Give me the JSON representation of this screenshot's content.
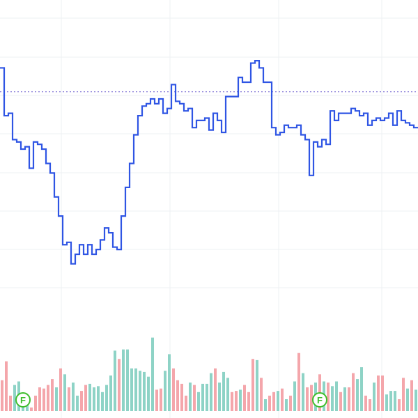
{
  "colors": {
    "price_line": "#2f55e4",
    "volume_up": "#8ed3c6",
    "volume_down": "#f4a6ab",
    "reference_line": "#6a5acd",
    "marker": "#3dbd2b",
    "grid": "#eef0f3"
  },
  "chart_data": {
    "type": "line",
    "description_note": "",
    "grid": true,
    "y_range": [
      0,
      100
    ],
    "volume_range": [
      0,
      100
    ],
    "reference_value": 82,
    "price_series": [
      92,
      72,
      73,
      62,
      61,
      58,
      59,
      50,
      61,
      60,
      58,
      52,
      48,
      38,
      30,
      18,
      19,
      10,
      14,
      18,
      14,
      18,
      14,
      16,
      20,
      25,
      23,
      17,
      16,
      30,
      42,
      52,
      64,
      72,
      76,
      77,
      79,
      77,
      79,
      73,
      75,
      85,
      78,
      77,
      74,
      75,
      67,
      70,
      70,
      71,
      66,
      73,
      70,
      65,
      80,
      80,
      80,
      88,
      86,
      86,
      94,
      95,
      92,
      86,
      86,
      67,
      64,
      65,
      68,
      67,
      67,
      68,
      64,
      62,
      47,
      61,
      59,
      62,
      60,
      74,
      70,
      73,
      73,
      73,
      75,
      74,
      72,
      73,
      68,
      70,
      71,
      70,
      71,
      73,
      68,
      74,
      70,
      69,
      68,
      67
    ],
    "volume_series": [
      {
        "v": 26,
        "up": false
      },
      {
        "v": 42,
        "up": false
      },
      {
        "v": 13,
        "up": false
      },
      {
        "v": 22,
        "up": true
      },
      {
        "v": 25,
        "up": true
      },
      {
        "v": 8,
        "up": true
      },
      {
        "v": 12,
        "up": true
      },
      {
        "v": 3,
        "up": false
      },
      {
        "v": 13,
        "up": false
      },
      {
        "v": 20,
        "up": false
      },
      {
        "v": 19,
        "up": false
      },
      {
        "v": 22,
        "up": false
      },
      {
        "v": 27,
        "up": false
      },
      {
        "v": 20,
        "up": true
      },
      {
        "v": 36,
        "up": false
      },
      {
        "v": 31,
        "up": true
      },
      {
        "v": 20,
        "up": false
      },
      {
        "v": 24,
        "up": true
      },
      {
        "v": 13,
        "up": true
      },
      {
        "v": 17,
        "up": false
      },
      {
        "v": 22,
        "up": false
      },
      {
        "v": 23,
        "up": true
      },
      {
        "v": 20,
        "up": true
      },
      {
        "v": 21,
        "up": true
      },
      {
        "v": 16,
        "up": true
      },
      {
        "v": 22,
        "up": true
      },
      {
        "v": 30,
        "up": true
      },
      {
        "v": 51,
        "up": true
      },
      {
        "v": 44,
        "up": false
      },
      {
        "v": 52,
        "up": true
      },
      {
        "v": 52,
        "up": true
      },
      {
        "v": 36,
        "up": true
      },
      {
        "v": 36,
        "up": true
      },
      {
        "v": 34,
        "up": true
      },
      {
        "v": 33,
        "up": true
      },
      {
        "v": 29,
        "up": true
      },
      {
        "v": 62,
        "up": true
      },
      {
        "v": 18,
        "up": false
      },
      {
        "v": 19,
        "up": false
      },
      {
        "v": 34,
        "up": true
      },
      {
        "v": 48,
        "up": true
      },
      {
        "v": 36,
        "up": false
      },
      {
        "v": 26,
        "up": false
      },
      {
        "v": 23,
        "up": false
      },
      {
        "v": 13,
        "up": false
      },
      {
        "v": 24,
        "up": true
      },
      {
        "v": 22,
        "up": false
      },
      {
        "v": 16,
        "up": true
      },
      {
        "v": 23,
        "up": true
      },
      {
        "v": 23,
        "up": true
      },
      {
        "v": 32,
        "up": true
      },
      {
        "v": 36,
        "up": false
      },
      {
        "v": 24,
        "up": true
      },
      {
        "v": 33,
        "up": true
      },
      {
        "v": 28,
        "up": true
      },
      {
        "v": 16,
        "up": false
      },
      {
        "v": 17,
        "up": false
      },
      {
        "v": 18,
        "up": true
      },
      {
        "v": 22,
        "up": false
      },
      {
        "v": 16,
        "up": false
      },
      {
        "v": 44,
        "up": false
      },
      {
        "v": 43,
        "up": true
      },
      {
        "v": 28,
        "up": false
      },
      {
        "v": 10,
        "up": true
      },
      {
        "v": 13,
        "up": false
      },
      {
        "v": 16,
        "up": false
      },
      {
        "v": 17,
        "up": true
      },
      {
        "v": 19,
        "up": false
      },
      {
        "v": 10,
        "up": true
      },
      {
        "v": 13,
        "up": false
      },
      {
        "v": 25,
        "up": true
      },
      {
        "v": 49,
        "up": false
      },
      {
        "v": 32,
        "up": true
      },
      {
        "v": 20,
        "up": false
      },
      {
        "v": 22,
        "up": false
      },
      {
        "v": 24,
        "up": true
      },
      {
        "v": 31,
        "up": false
      },
      {
        "v": 25,
        "up": true
      },
      {
        "v": 24,
        "up": false
      },
      {
        "v": 21,
        "up": true
      },
      {
        "v": 25,
        "up": true
      },
      {
        "v": 16,
        "up": false
      },
      {
        "v": 20,
        "up": true
      },
      {
        "v": 20,
        "up": false
      },
      {
        "v": 32,
        "up": false
      },
      {
        "v": 27,
        "up": true
      },
      {
        "v": 37,
        "up": true
      },
      {
        "v": 13,
        "up": false
      },
      {
        "v": 10,
        "up": false
      },
      {
        "v": 24,
        "up": true
      },
      {
        "v": 30,
        "up": false
      },
      {
        "v": 30,
        "up": false
      },
      {
        "v": 14,
        "up": true
      },
      {
        "v": 17,
        "up": true
      },
      {
        "v": 17,
        "up": true
      },
      {
        "v": 10,
        "up": false
      },
      {
        "v": 28,
        "up": false
      },
      {
        "v": 19,
        "up": true
      },
      {
        "v": 26,
        "up": false
      },
      {
        "v": 18,
        "up": true
      }
    ],
    "event_markers": [
      {
        "label": "F",
        "index": 3
      },
      {
        "label": "F",
        "index": 74
      }
    ]
  }
}
